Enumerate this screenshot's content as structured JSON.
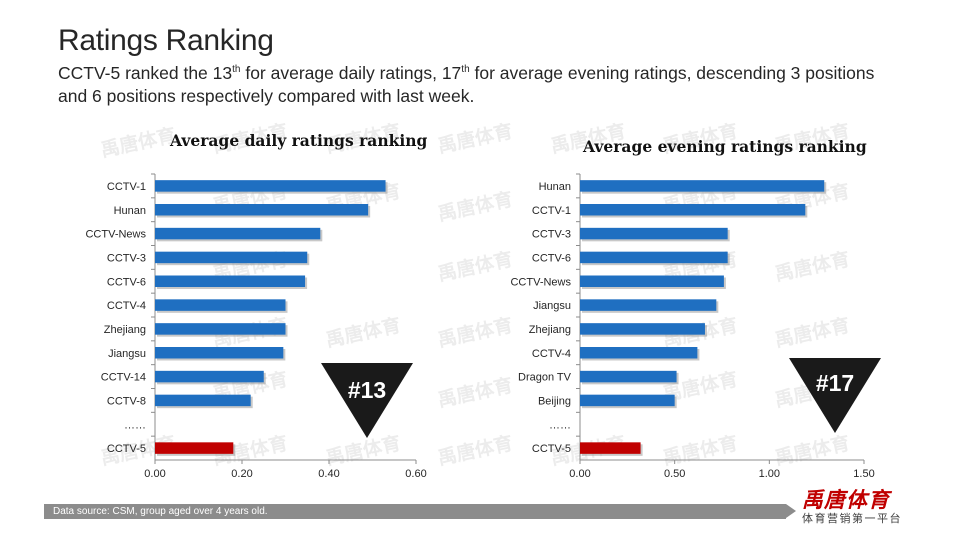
{
  "page": {
    "title": "Ratings Ranking",
    "subtitle": {
      "p1": "CCTV-5 ranked the 13",
      "sup1": "th",
      "p2": " for average daily ratings, 17",
      "sup2": "th",
      "p3": " for average evening ratings, descending 3 positions and 6 positions respectively compared with last week."
    },
    "watermark_text": "禹唐体育",
    "footer": {
      "source": "Data source: CSM, group aged over 4 years old."
    },
    "logo": {
      "name": "禹唐体育",
      "tagline": "体育营销第一平台"
    },
    "colors": {
      "bar": "#1f6fc1",
      "highlight": "#c00000",
      "badge": "#1a1a1a",
      "badge_text": "#ffffff"
    }
  },
  "chart_data": [
    {
      "type": "bar",
      "orientation": "horizontal",
      "title": "Average daily ratings ranking",
      "categories": [
        "CCTV-1",
        "Hunan",
        "CCTV-News",
        "CCTV-3",
        "CCTV-6",
        "CCTV-4",
        "Zhejiang",
        "Jiangsu",
        "CCTV-14",
        "CCTV-8",
        "……",
        "CCTV-5"
      ],
      "values": [
        0.53,
        0.49,
        0.38,
        0.35,
        0.345,
        0.3,
        0.3,
        0.295,
        0.25,
        0.22,
        null,
        0.18
      ],
      "highlight": "CCTV-5",
      "xlim": [
        0,
        0.6
      ],
      "xticks": [
        "0.00",
        "0.20",
        "0.40",
        "0.60"
      ],
      "xtick_values": [
        0,
        0.2,
        0.4,
        0.6
      ],
      "badge": "#13"
    },
    {
      "type": "bar",
      "orientation": "horizontal",
      "title": "Average evening ratings ranking",
      "categories": [
        "Hunan",
        "CCTV-1",
        "CCTV-3",
        "CCTV-6",
        "CCTV-News",
        "Jiangsu",
        "Zhejiang",
        "CCTV-4",
        "Dragon TV",
        "Beijing",
        "……",
        "CCTV-5"
      ],
      "values": [
        1.29,
        1.19,
        0.78,
        0.78,
        0.76,
        0.72,
        0.66,
        0.62,
        0.51,
        0.5,
        null,
        0.32
      ],
      "highlight": "CCTV-5",
      "xlim": [
        0,
        1.5
      ],
      "xticks": [
        "0.00",
        "0.50",
        "1.00",
        "1.50"
      ],
      "xtick_values": [
        0,
        0.5,
        1.0,
        1.5
      ],
      "badge": "#17"
    }
  ]
}
